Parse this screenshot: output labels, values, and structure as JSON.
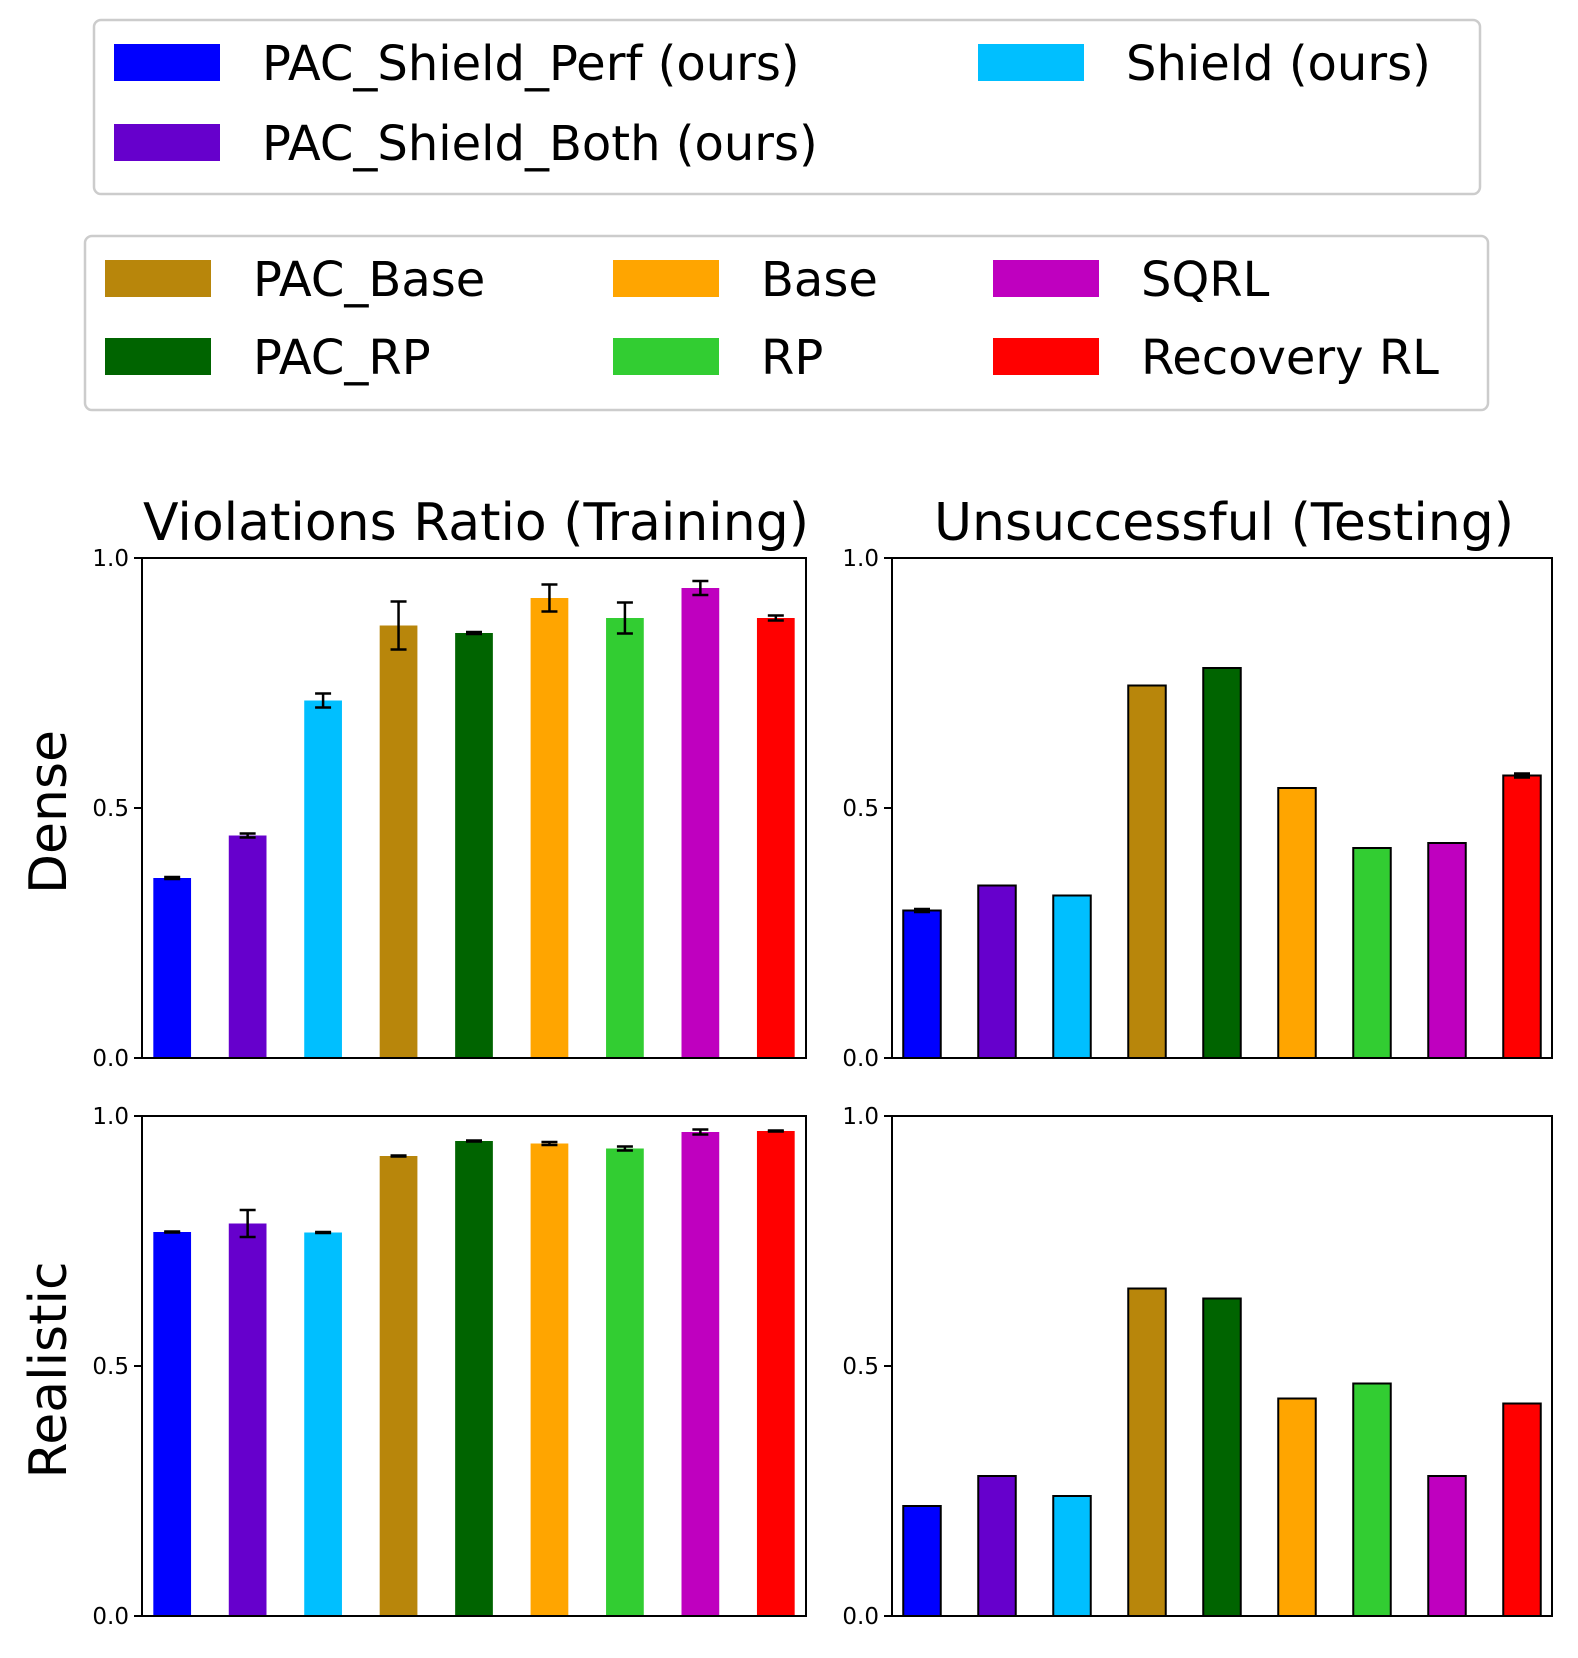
{
  "legends": [
    {
      "columns": 3,
      "items": [
        {
          "label": "PAC_Shield_Perf (ours)",
          "color": "#0000ff"
        },
        {
          "label": "PAC_Shield_Both (ours)",
          "color": "#6600cc"
        },
        {
          "label": "Shield (ours)",
          "color": "#00bfff"
        }
      ]
    },
    {
      "columns": 3,
      "items": [
        {
          "label": "PAC_Base",
          "color": "#b8860b"
        },
        {
          "label": "PAC_RP",
          "color": "#006400"
        },
        {
          "label": "Base",
          "color": "#ffa500"
        },
        {
          "label": "RP",
          "color": "#32cd32"
        },
        {
          "label": "SQRL",
          "color": "#bf00bf"
        },
        {
          "label": "Recovery RL",
          "color": "#ff0000"
        }
      ]
    }
  ],
  "column_titles": [
    "Violations Ratio (Training)",
    "Unsuccessful (Testing)"
  ],
  "row_labels": [
    "Dense",
    "Realistic"
  ],
  "chart_data": [
    {
      "type": "bar",
      "row": "Dense",
      "title": "Violations Ratio (Training)",
      "categories": [
        "PAC_Shield_Perf (ours)",
        "PAC_Shield_Both (ours)",
        "Shield (ours)",
        "PAC_Base",
        "PAC_RP",
        "Base",
        "RP",
        "SQRL",
        "Recovery RL"
      ],
      "values": [
        0.36,
        0.445,
        0.715,
        0.865,
        0.85,
        0.92,
        0.88,
        0.94,
        0.88
      ],
      "errors": [
        0.002,
        0.004,
        0.014,
        0.048,
        0.002,
        0.027,
        0.031,
        0.014,
        0.005
      ],
      "ylim": [
        0,
        1
      ],
      "yticks": [
        "0.0",
        "0.5",
        "1.0"
      ],
      "bordered": false
    },
    {
      "type": "bar",
      "row": "Dense",
      "title": "Unsuccessful (Testing)",
      "categories": [
        "PAC_Shield_Perf (ours)",
        "PAC_Shield_Both (ours)",
        "Shield (ours)",
        "PAC_Base",
        "PAC_RP",
        "Base",
        "RP",
        "SQRL",
        "Recovery RL"
      ],
      "values": [
        0.295,
        0.345,
        0.325,
        0.745,
        0.78,
        0.54,
        0.42,
        0.43,
        0.565
      ],
      "errors": [
        0.003,
        0,
        0,
        0,
        0,
        0,
        0,
        0,
        0.004
      ],
      "ylim": [
        0,
        1
      ],
      "yticks": [
        "0.0",
        "0.5",
        "1.0"
      ],
      "bordered": true
    },
    {
      "type": "bar",
      "row": "Realistic",
      "title": "Violations Ratio (Training)",
      "categories": [
        "PAC_Shield_Perf (ours)",
        "PAC_Shield_Both (ours)",
        "Shield (ours)",
        "PAC_Base",
        "PAC_RP",
        "Base",
        "RP",
        "SQRL",
        "Recovery RL"
      ],
      "values": [
        0.768,
        0.785,
        0.767,
        0.92,
        0.95,
        0.945,
        0.935,
        0.968,
        0.97
      ],
      "errors": [
        0.001,
        0.027,
        0.001,
        0.001,
        0.001,
        0.003,
        0.004,
        0.005,
        0.001
      ],
      "ylim": [
        0,
        1
      ],
      "yticks": [
        "0.0",
        "0.5",
        "1.0"
      ],
      "bordered": false
    },
    {
      "type": "bar",
      "row": "Realistic",
      "title": "Unsuccessful (Testing)",
      "categories": [
        "PAC_Shield_Perf (ours)",
        "PAC_Shield_Both (ours)",
        "Shield (ours)",
        "PAC_Base",
        "PAC_RP",
        "Base",
        "RP",
        "SQRL",
        "Recovery RL"
      ],
      "values": [
        0.22,
        0.28,
        0.24,
        0.655,
        0.635,
        0.435,
        0.465,
        0.28,
        0.425
      ],
      "errors": [
        0,
        0,
        0,
        0,
        0,
        0,
        0,
        0,
        0
      ],
      "ylim": [
        0,
        1
      ],
      "yticks": [
        "0.0",
        "0.5",
        "1.0"
      ],
      "bordered": true
    }
  ]
}
